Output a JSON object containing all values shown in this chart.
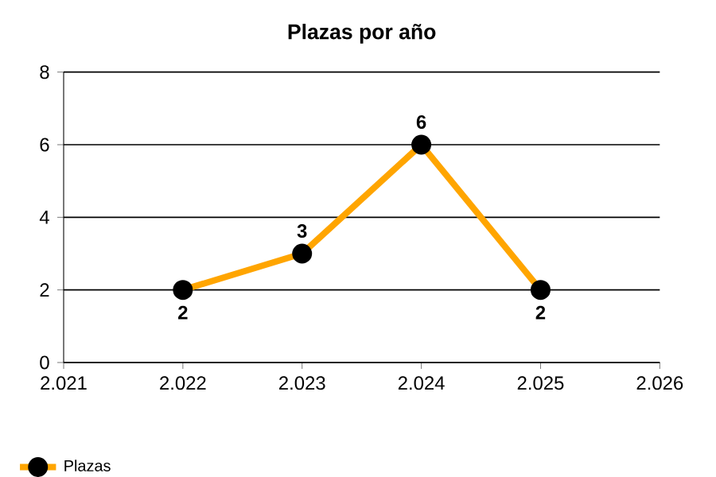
{
  "chart_data": {
    "type": "line",
    "title": "Plazas por año",
    "x": [
      2022,
      2023,
      2024,
      2025
    ],
    "series": [
      {
        "name": "Plazas",
        "color": "#ffa500",
        "values": [
          2,
          3,
          6,
          2
        ]
      }
    ],
    "xlim": [
      2021,
      2026
    ],
    "xticks": [
      {
        "value": 2021,
        "label": "2.021"
      },
      {
        "value": 2022,
        "label": "2.022"
      },
      {
        "value": 2023,
        "label": "2.023"
      },
      {
        "value": 2024,
        "label": "2.024"
      },
      {
        "value": 2025,
        "label": "2.025"
      },
      {
        "value": 2026,
        "label": "2.026"
      }
    ],
    "ylim": [
      0,
      8
    ],
    "yticks": [
      0,
      2,
      4,
      6,
      8
    ],
    "grid": "y",
    "legend": "bottom left",
    "marker": "circle",
    "line_style": "solid",
    "data_labels": true
  }
}
